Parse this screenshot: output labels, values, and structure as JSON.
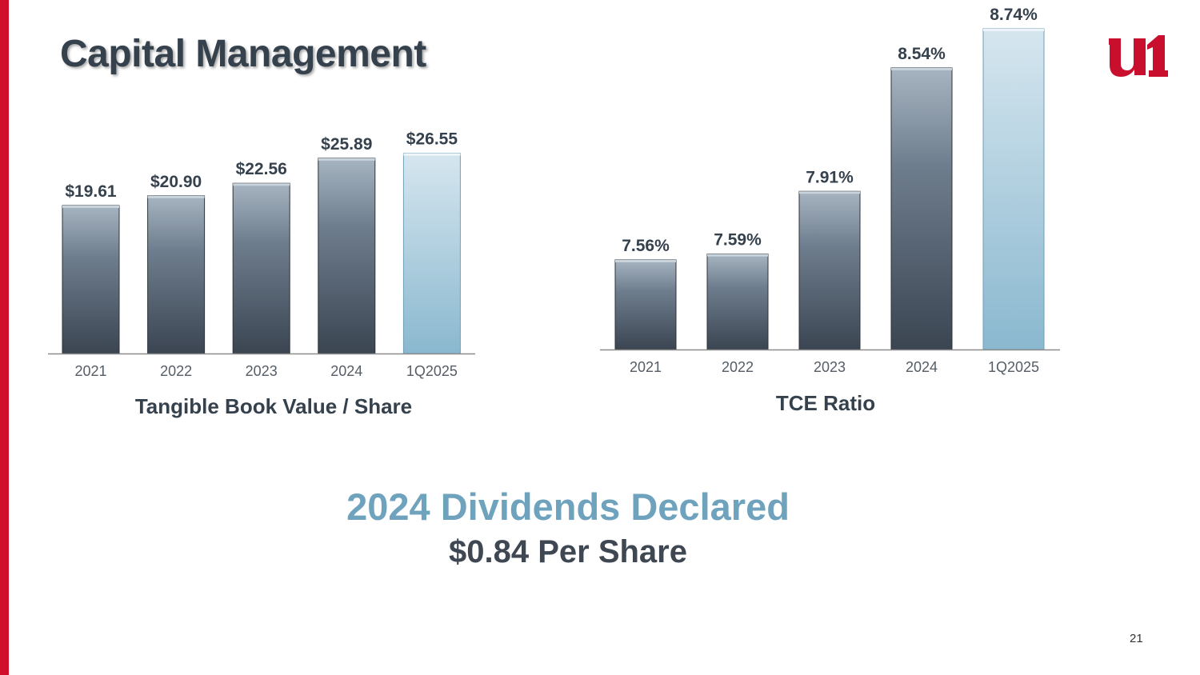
{
  "slide": {
    "title": "Capital Management",
    "page_number": "21",
    "dividends_headline": "2024 Dividends Declared",
    "dividends_value": "$0.84 Per Share",
    "accent_color": "#d0102a",
    "logo_icon": "u1-logo"
  },
  "chart_data": [
    {
      "type": "bar",
      "title": "Tangible Book Value / Share",
      "categories": [
        "2021",
        "2022",
        "2023",
        "2024",
        "1Q2025"
      ],
      "values": [
        19.61,
        20.9,
        22.56,
        25.89,
        26.55
      ],
      "value_labels": [
        "$19.61",
        "$20.90",
        "$22.56",
        "$25.89",
        "$26.55"
      ],
      "highlight_index": 4,
      "colors": {
        "bar": "#3b4552",
        "highlight": "#8ab8cf"
      },
      "grid": false,
      "legend": false
    },
    {
      "type": "bar",
      "title": "TCE Ratio",
      "categories": [
        "2021",
        "2022",
        "2023",
        "2024",
        "1Q2025"
      ],
      "values": [
        7.56,
        7.59,
        7.91,
        8.54,
        8.74
      ],
      "value_labels": [
        "7.56%",
        "7.59%",
        "7.91%",
        "8.54%",
        "8.74%"
      ],
      "highlight_index": 4,
      "colors": {
        "bar": "#3b4552",
        "highlight": "#8ab8cf"
      },
      "grid": false,
      "legend": false
    }
  ]
}
